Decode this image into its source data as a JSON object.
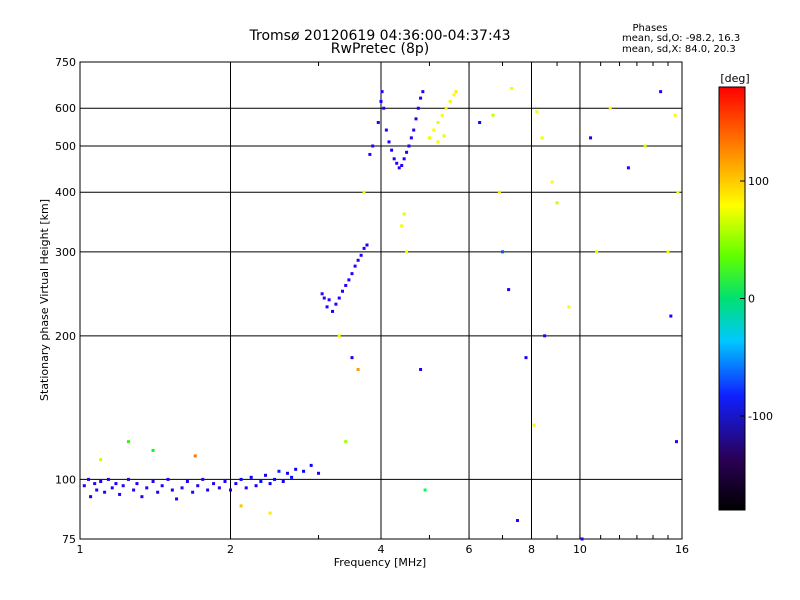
{
  "chart_data": {
    "type": "scatter",
    "title": "Tromsø 20120619 04:36:00-04:37:43",
    "subtitle": "RwPretec (8p)",
    "xlabel": "Frequency [MHz]",
    "ylabel": "Stationary phase Virtual Height [km]",
    "xscale": "log",
    "yscale": "log",
    "xlim": [
      1,
      16
    ],
    "ylim": [
      75,
      750
    ],
    "xticks": [
      1,
      2,
      4,
      6,
      8,
      10,
      16
    ],
    "yticks": [
      75,
      100,
      200,
      300,
      400,
      500,
      600,
      750
    ],
    "grid": true,
    "phase_info": {
      "heading": "Phases",
      "line_o": "mean, sd,O: -98.2, 16.3",
      "line_x": "mean, sd,X: 84.0, 20.3"
    },
    "colorbar": {
      "label": "[deg]",
      "range": [
        -180,
        180
      ],
      "ticks": [
        100,
        0,
        -100
      ]
    },
    "series": [
      {
        "points": [
          [
            1.02,
            97,
            -110
          ],
          [
            1.04,
            100,
            -105
          ],
          [
            1.05,
            92,
            -100
          ],
          [
            1.07,
            98,
            -115
          ],
          [
            1.08,
            95,
            -108
          ],
          [
            1.1,
            99,
            -100
          ],
          [
            1.12,
            94,
            -112
          ],
          [
            1.14,
            100,
            -105
          ],
          [
            1.16,
            96,
            -110
          ],
          [
            1.18,
            98,
            -100
          ],
          [
            1.2,
            93,
            -108
          ],
          [
            1.22,
            97,
            -112
          ],
          [
            1.25,
            100,
            -104
          ],
          [
            1.28,
            95,
            -110
          ],
          [
            1.3,
            98,
            -100
          ],
          [
            1.33,
            92,
            -105
          ],
          [
            1.36,
            96,
            -110
          ],
          [
            1.4,
            99,
            -108
          ],
          [
            1.43,
            94,
            -102
          ],
          [
            1.46,
            97,
            -112
          ],
          [
            1.5,
            100,
            -105
          ],
          [
            1.53,
            95,
            -100
          ],
          [
            1.56,
            91,
            -110
          ],
          [
            1.6,
            96,
            -108
          ],
          [
            1.64,
            99,
            -104
          ],
          [
            1.68,
            94,
            -110
          ],
          [
            1.72,
            97,
            -106
          ],
          [
            1.76,
            100,
            -112
          ],
          [
            1.8,
            95,
            -100
          ],
          [
            1.85,
            98,
            -108
          ],
          [
            1.9,
            96,
            -104
          ],
          [
            1.95,
            99,
            -110
          ],
          [
            2.0,
            95,
            -100
          ],
          [
            2.05,
            98,
            -95
          ],
          [
            2.1,
            100,
            -90
          ],
          [
            2.15,
            96,
            -105
          ],
          [
            2.2,
            101,
            -85
          ],
          [
            2.25,
            97,
            -100
          ],
          [
            2.3,
            99,
            -80
          ],
          [
            2.35,
            102,
            -95
          ],
          [
            2.4,
            98,
            -90
          ],
          [
            2.45,
            100,
            -85
          ],
          [
            2.5,
            104,
            -75
          ],
          [
            2.55,
            99,
            -95
          ],
          [
            2.6,
            103,
            -88
          ],
          [
            2.65,
            101,
            -80
          ],
          [
            2.7,
            105,
            -92
          ],
          [
            2.8,
            104,
            -85
          ],
          [
            2.9,
            107,
            -98
          ],
          [
            3.0,
            103,
            -105
          ],
          [
            3.05,
            245,
            -120
          ],
          [
            3.08,
            240,
            -115
          ],
          [
            3.12,
            230,
            -110
          ],
          [
            3.15,
            238,
            -118
          ],
          [
            3.2,
            225,
            -100
          ],
          [
            3.25,
            233,
            -105
          ],
          [
            3.3,
            240,
            -112
          ],
          [
            3.35,
            248,
            -108
          ],
          [
            3.4,
            255,
            -115
          ],
          [
            3.45,
            262,
            -110
          ],
          [
            3.5,
            270,
            -105
          ],
          [
            3.55,
            280,
            -112
          ],
          [
            3.6,
            288,
            -110
          ],
          [
            3.65,
            295,
            -108
          ],
          [
            3.7,
            305,
            -110
          ],
          [
            3.75,
            310,
            -100
          ],
          [
            3.8,
            480,
            -120
          ],
          [
            3.85,
            500,
            -115
          ],
          [
            3.95,
            560,
            -110
          ],
          [
            4.0,
            620,
            -100
          ],
          [
            4.02,
            650,
            -110
          ],
          [
            4.05,
            600,
            -105
          ],
          [
            4.1,
            540,
            -115
          ],
          [
            4.15,
            510,
            -110
          ],
          [
            4.2,
            490,
            -100
          ],
          [
            4.25,
            470,
            -108
          ],
          [
            4.3,
            460,
            -105
          ],
          [
            4.35,
            450,
            -112
          ],
          [
            4.4,
            455,
            -110
          ],
          [
            4.45,
            470,
            -108
          ],
          [
            4.5,
            485,
            -100
          ],
          [
            4.55,
            500,
            -105
          ],
          [
            4.6,
            520,
            -110
          ],
          [
            4.65,
            540,
            -108
          ],
          [
            4.7,
            570,
            -110
          ],
          [
            4.75,
            600,
            -105
          ],
          [
            4.8,
            630,
            -108
          ],
          [
            4.85,
            650,
            -110
          ],
          [
            4.4,
            340,
            110
          ],
          [
            4.45,
            360,
            105
          ],
          [
            4.5,
            300,
            112
          ],
          [
            5.0,
            520,
            110
          ],
          [
            5.1,
            540,
            115
          ],
          [
            5.2,
            560,
            108
          ],
          [
            5.3,
            580,
            112
          ],
          [
            5.4,
            600,
            118
          ],
          [
            5.5,
            620,
            110
          ],
          [
            5.6,
            640,
            115
          ],
          [
            5.65,
            650,
            120
          ],
          [
            5.2,
            510,
            112
          ],
          [
            5.35,
            525,
            108
          ],
          [
            6.3,
            560,
            -80
          ],
          [
            6.7,
            580,
            100
          ],
          [
            6.9,
            400,
            120
          ],
          [
            7.0,
            300,
            -60
          ],
          [
            7.2,
            250,
            -100
          ],
          [
            7.3,
            660,
            110
          ],
          [
            8.2,
            590,
            112
          ],
          [
            8.4,
            520,
            110
          ],
          [
            8.5,
            200,
            -115
          ],
          [
            8.8,
            420,
            115
          ],
          [
            9.0,
            380,
            100
          ],
          [
            9.5,
            230,
            112
          ],
          [
            10.1,
            75,
            -110
          ],
          [
            10.5,
            520,
            -100
          ],
          [
            10.8,
            300,
            110
          ],
          [
            11.5,
            600,
            115
          ],
          [
            12.5,
            450,
            -105
          ],
          [
            13.5,
            500,
            105
          ],
          [
            14.5,
            650,
            -110
          ],
          [
            15.0,
            300,
            110
          ],
          [
            15.2,
            220,
            -100
          ],
          [
            15.5,
            580,
            115
          ],
          [
            15.6,
            120,
            -112
          ],
          [
            15.7,
            400,
            112
          ],
          [
            1.1,
            110,
            100
          ],
          [
            1.25,
            120,
            60
          ],
          [
            1.4,
            115,
            40
          ],
          [
            1.7,
            112,
            150
          ],
          [
            2.1,
            88,
            130
          ],
          [
            2.4,
            85,
            120
          ],
          [
            3.4,
            120,
            90
          ],
          [
            3.7,
            400,
            110
          ],
          [
            3.5,
            180,
            -100
          ],
          [
            3.6,
            170,
            140
          ],
          [
            4.9,
            95,
            30
          ],
          [
            4.8,
            170,
            -100
          ],
          [
            3.3,
            200,
            112
          ],
          [
            7.5,
            82,
            -110
          ],
          [
            7.8,
            180,
            -100
          ],
          [
            8.1,
            130,
            115
          ]
        ]
      }
    ]
  }
}
